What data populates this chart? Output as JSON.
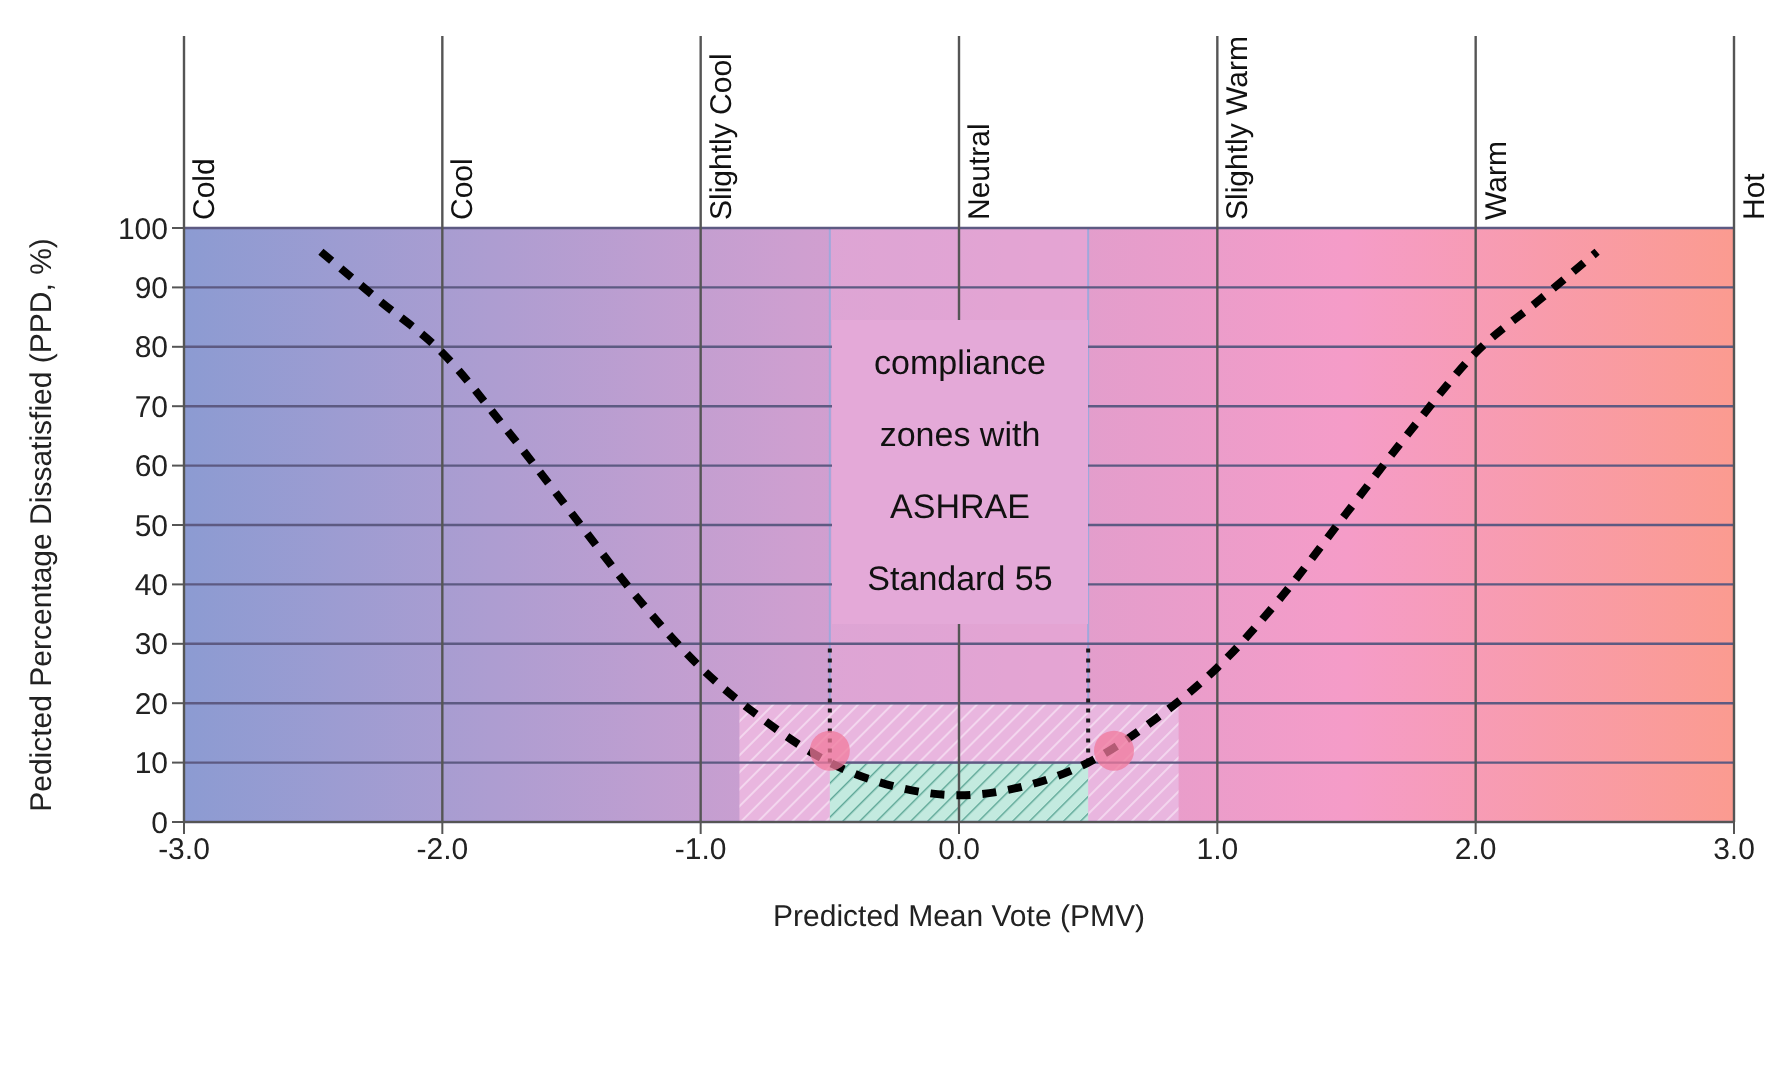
{
  "chart_data": {
    "type": "line",
    "xlabel": "Predicted Mean Vote (PMV)",
    "ylabel": "Pedicted Percentage Dissatisfied (PPD, %)",
    "xlim": [
      -3,
      3
    ],
    "xticks": [
      {
        "value": -3,
        "label": "-3.0"
      },
      {
        "value": -2,
        "label": "-2.0"
      },
      {
        "value": -1,
        "label": "-1.0"
      },
      {
        "value": 0,
        "label": "0.0"
      },
      {
        "value": 1,
        "label": "1.0"
      },
      {
        "value": 2,
        "label": "2.0"
      },
      {
        "value": 3,
        "label": "3.0"
      }
    ],
    "ylim": [
      0,
      100
    ],
    "yticks": [
      0,
      10,
      20,
      30,
      40,
      50,
      60,
      70,
      80,
      90,
      100
    ],
    "grid": "y",
    "legend": false,
    "series": [
      {
        "type": "area",
        "color": "#e9b6df",
        "x": [
          -0.85,
          0.85
        ],
        "values": [
          20,
          20
        ]
      },
      {
        "type": "area",
        "color": "#c3eadf",
        "x": [
          -0.5,
          0.5
        ],
        "values": [
          10,
          10
        ]
      },
      {
        "type": "line",
        "line_style": "dotted",
        "marker": "none",
        "color": "#1a1a1a",
        "x": [
          -0.5,
          -0.5
        ],
        "values": [
          10,
          30
        ]
      },
      {
        "type": "line",
        "line_style": "dotted",
        "marker": "none",
        "color": "#1a1a1a",
        "x": [
          0.5,
          0.5
        ],
        "values": [
          10,
          30
        ]
      },
      {
        "line_style": "dashed",
        "marker": "none",
        "color": "#000000",
        "x": [
          -2.47,
          -2.25,
          -2,
          -1.75,
          -1.5,
          -1.25,
          -1,
          -0.75,
          -0.5,
          -0.25,
          0,
          0.25,
          0.5,
          0.75,
          1,
          1.25,
          1.5,
          1.75,
          2,
          2.25,
          2.47
        ],
        "values": [
          96,
          88,
          79,
          66,
          52,
          38,
          26,
          17,
          10,
          6,
          4.5,
          6,
          10,
          17,
          26,
          38,
          52,
          66,
          79,
          88,
          96
        ]
      },
      {
        "type": "scatter",
        "marker": "circle",
        "color": "#f07a9c",
        "x": [
          -0.5,
          0.6
        ],
        "values": [
          12,
          12
        ]
      }
    ],
    "ref_lines": [
      {
        "axis": "x",
        "value": -3,
        "label": "Cold"
      },
      {
        "axis": "x",
        "value": -2,
        "label": "Cool"
      },
      {
        "axis": "x",
        "value": -1,
        "label": "Slightly Cool"
      },
      {
        "axis": "x",
        "value": 0,
        "label": "Neutral"
      },
      {
        "axis": "x",
        "value": 1,
        "label": "Slightly Warm"
      },
      {
        "axis": "x",
        "value": 2,
        "label": "Warm"
      },
      {
        "axis": "x",
        "value": 3,
        "label": "Hot"
      }
    ],
    "bands": [
      {
        "axis": "x",
        "from": -0.5,
        "to": 0.5,
        "color": "#e7a9d8"
      }
    ],
    "annotations": [
      "compliance\nzones with\nASHRAE\nStandard 55"
    ]
  }
}
